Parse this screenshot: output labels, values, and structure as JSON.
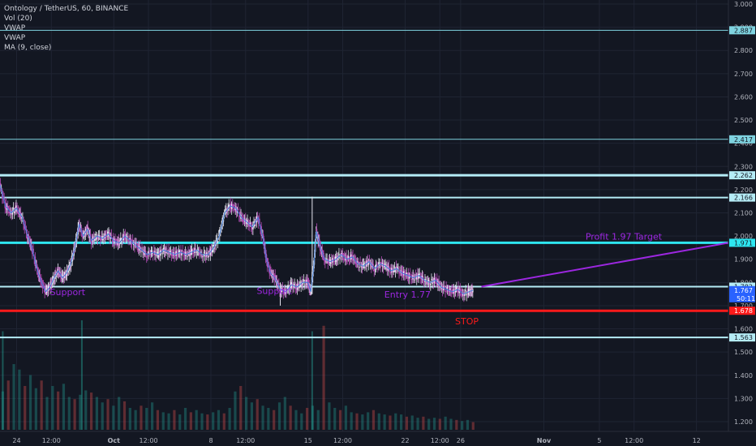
{
  "chart_data": {
    "type": "candlestick",
    "symbol_line": "Ontology / TetherUS, 60, BINANCE",
    "indicators": [
      "Vol (20)",
      "VWAP",
      "VWAP",
      "MA (9, close)"
    ],
    "price_axis": {
      "ticks": [
        "3.000",
        "2.900",
        "2.800",
        "2.700",
        "2.600",
        "2.500",
        "2.400",
        "2.300",
        "2.200",
        "2.100",
        "2.000",
        "1.900",
        "1.800",
        "1.700",
        "1.600",
        "1.500",
        "1.400",
        "1.300",
        "1.200"
      ],
      "tick_values": [
        3.0,
        2.9,
        2.8,
        2.7,
        2.6,
        2.5,
        2.4,
        2.3,
        2.2,
        2.1,
        2.0,
        1.9,
        1.8,
        1.7,
        1.6,
        1.5,
        1.4,
        1.3,
        1.2
      ],
      "ylim": [
        1.15,
        3.02
      ]
    },
    "time_axis": {
      "labels": [
        "24",
        "12:00",
        "Oct",
        "12:00",
        "8",
        "12:00",
        "15",
        "12:00",
        "22",
        "12:00",
        "26",
        "Nov",
        "5",
        "12:00",
        "12"
      ],
      "label_days": [
        -7,
        -4.5,
        0,
        2.5,
        7,
        9.5,
        14,
        16.5,
        21,
        23.5,
        25,
        31,
        35,
        37.5,
        42
      ],
      "xlim": [
        -8.2,
        44.3
      ]
    },
    "horizontal_levels": [
      {
        "value": 2.887,
        "label": "2.887",
        "color": "#7fd3e0",
        "style": "thin"
      },
      {
        "value": 2.417,
        "label": "2.417",
        "color": "#7fd3e0",
        "style": "thin"
      },
      {
        "value": 2.262,
        "label": "2.262",
        "color": "#b5ecf6",
        "style": "thick"
      },
      {
        "value": 2.166,
        "label": "2.166",
        "color": "#b5ecf6",
        "style": "medium"
      },
      {
        "value": 1.971,
        "label": "1.971",
        "color": "#2ee6f0",
        "style": "thick"
      },
      {
        "value": 1.782,
        "label": "1.782",
        "color": "#b5ecf6",
        "style": "medium"
      },
      {
        "value": 1.678,
        "label": "1.678",
        "color": "#ff1a1a",
        "style": "thick"
      },
      {
        "value": 1.563,
        "label": "1.563",
        "color": "#b5ecf6",
        "style": "medium"
      }
    ],
    "current_price": {
      "value": 1.767,
      "label": "1.767",
      "countdown": "50:11",
      "color": "#2962ff"
    },
    "price_path": [
      [
        -8.2,
        2.22
      ],
      [
        -7.8,
        2.13
      ],
      [
        -7.4,
        2.1
      ],
      [
        -7.0,
        2.12
      ],
      [
        -6.6,
        2.08
      ],
      [
        -6.2,
        2.0
      ],
      [
        -5.9,
        1.95
      ],
      [
        -5.5,
        1.85
      ],
      [
        -5.2,
        1.8
      ],
      [
        -4.9,
        1.76
      ],
      [
        -4.6,
        1.78
      ],
      [
        -4.3,
        1.82
      ],
      [
        -4.0,
        1.85
      ],
      [
        -3.7,
        1.82
      ],
      [
        -3.4,
        1.84
      ],
      [
        -3.1,
        1.88
      ],
      [
        -2.8,
        1.95
      ],
      [
        -2.5,
        2.05
      ],
      [
        -2.2,
        2.0
      ],
      [
        -1.9,
        2.03
      ],
      [
        -1.6,
        1.98
      ],
      [
        -1.2,
        2.0
      ],
      [
        -0.8,
        1.99
      ],
      [
        -0.4,
        2.01
      ],
      [
        0.0,
        1.98
      ],
      [
        0.4,
        1.97
      ],
      [
        0.8,
        2.0
      ],
      [
        1.2,
        1.98
      ],
      [
        1.6,
        1.96
      ],
      [
        2.0,
        1.94
      ],
      [
        2.4,
        1.92
      ],
      [
        2.8,
        1.93
      ],
      [
        3.2,
        1.92
      ],
      [
        3.6,
        1.94
      ],
      [
        4.0,
        1.93
      ],
      [
        4.4,
        1.92
      ],
      [
        4.8,
        1.93
      ],
      [
        5.2,
        1.92
      ],
      [
        5.6,
        1.93
      ],
      [
        6.0,
        1.94
      ],
      [
        6.4,
        1.92
      ],
      [
        6.8,
        1.92
      ],
      [
        7.2,
        1.95
      ],
      [
        7.6,
        2.0
      ],
      [
        8.0,
        2.1
      ],
      [
        8.4,
        2.13
      ],
      [
        8.8,
        2.12
      ],
      [
        9.2,
        2.08
      ],
      [
        9.6,
        2.06
      ],
      [
        10.0,
        2.04
      ],
      [
        10.4,
        2.08
      ],
      [
        10.8,
        1.98
      ],
      [
        11.0,
        1.9
      ],
      [
        11.3,
        1.84
      ],
      [
        11.6,
        1.82
      ],
      [
        12.0,
        1.77
      ],
      [
        12.4,
        1.76
      ],
      [
        12.8,
        1.79
      ],
      [
        13.2,
        1.78
      ],
      [
        13.6,
        1.8
      ],
      [
        14.0,
        1.8
      ],
      [
        14.2,
        1.76
      ],
      [
        14.4,
        1.86
      ],
      [
        14.6,
        2.02
      ],
      [
        14.9,
        1.95
      ],
      [
        15.2,
        1.9
      ],
      [
        15.6,
        1.89
      ],
      [
        16.0,
        1.9
      ],
      [
        16.4,
        1.92
      ],
      [
        16.8,
        1.9
      ],
      [
        17.2,
        1.91
      ],
      [
        17.6,
        1.88
      ],
      [
        18.0,
        1.87
      ],
      [
        18.4,
        1.89
      ],
      [
        18.8,
        1.86
      ],
      [
        19.2,
        1.88
      ],
      [
        19.6,
        1.87
      ],
      [
        20.0,
        1.85
      ],
      [
        20.4,
        1.86
      ],
      [
        20.8,
        1.84
      ],
      [
        21.2,
        1.83
      ],
      [
        21.6,
        1.82
      ],
      [
        22.0,
        1.83
      ],
      [
        22.4,
        1.81
      ],
      [
        22.8,
        1.8
      ],
      [
        23.2,
        1.81
      ],
      [
        23.6,
        1.78
      ],
      [
        24.0,
        1.77
      ],
      [
        24.4,
        1.76
      ],
      [
        24.8,
        1.77
      ],
      [
        25.2,
        1.75
      ],
      [
        25.6,
        1.76
      ],
      [
        25.9,
        1.767
      ]
    ],
    "wick_spikes": [
      {
        "x": 14.3,
        "low": 1.75,
        "high": 2.17
      },
      {
        "x": 12.0,
        "low": 1.7,
        "high": 1.8
      }
    ],
    "volume": {
      "ymax": 100,
      "values": [
        35,
        45,
        60,
        55,
        40,
        50,
        38,
        45,
        30,
        40,
        35,
        42,
        30,
        28,
        32,
        36,
        34,
        30,
        25,
        28,
        22,
        30,
        26,
        20,
        18,
        22,
        20,
        25,
        18,
        16,
        15,
        18,
        14,
        20,
        16,
        18,
        15,
        14,
        16,
        18,
        15,
        20,
        35,
        40,
        30,
        25,
        28,
        22,
        20,
        18,
        25,
        30,
        22,
        18,
        15,
        20,
        22,
        18,
        95,
        25,
        20,
        18,
        22,
        16,
        15,
        14,
        16,
        18,
        15,
        14,
        13,
        15,
        14,
        12,
        13,
        11,
        12,
        10,
        11,
        10,
        12,
        10,
        9,
        8,
        9,
        7
      ],
      "spikes": [
        {
          "x": -2.3,
          "value": 100
        },
        {
          "x": 14.3,
          "value": 90
        },
        {
          "x": -8.0,
          "value": 90
        }
      ]
    },
    "projection_line": {
      "from": [
        26.5,
        1.782
      ],
      "to": [
        44.3,
        1.971
      ],
      "color": "#9c27e0"
    },
    "annotations": [
      {
        "text": "Support",
        "x": -4.6,
        "y": 1.745,
        "color": "#9c27e0"
      },
      {
        "text": "Support",
        "x": 10.3,
        "y": 1.75,
        "color": "#9c27e0"
      },
      {
        "text": "Entry 1.77",
        "x": 19.5,
        "y": 1.735,
        "color": "#9c27e0"
      },
      {
        "text": "Profit 1.97 Target",
        "x": 34.0,
        "y": 1.985,
        "color": "#9c27e0"
      },
      {
        "text": "STOP",
        "x": 24.6,
        "y": 1.62,
        "color": "#ff1a1a"
      }
    ],
    "grid": true
  }
}
